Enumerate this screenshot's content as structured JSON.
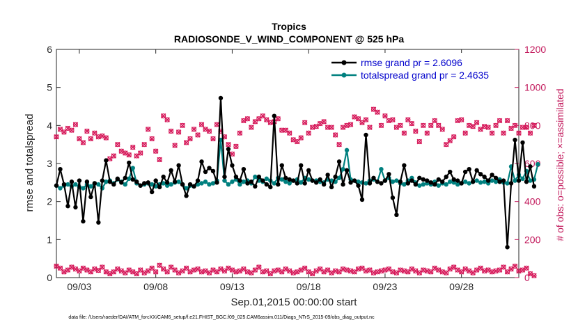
{
  "chart_data": {
    "type": "line",
    "title_line1": "Tropics",
    "title_line2": "RADIOSONDE_V_WIND_COMPONENT @ 525 hPa",
    "xlabel": "Sep.01,2015 00:00:00 start",
    "ylabel_left": "rmse and totalspread",
    "ylabel_right": "# of obs: o=possible; ×=assimilated",
    "x_ticks": [
      "09/03",
      "09/08",
      "09/13",
      "09/18",
      "09/23",
      "09/28"
    ],
    "x_tick_days": [
      3,
      8,
      13,
      18,
      23,
      28
    ],
    "xlim": [
      1.5,
      31.75
    ],
    "ylim_left": [
      0,
      6
    ],
    "y_ticks_left": [
      "0",
      "1",
      "2",
      "3",
      "4",
      "5",
      "6"
    ],
    "ylim_right": [
      0,
      1200
    ],
    "y_ticks_right": [
      "0",
      "200",
      "400",
      "600",
      "800",
      "1000",
      "1200"
    ],
    "legend": [
      "rmse grand pr = 2.6096",
      "totalspread grand pr = 2.4635"
    ],
    "colors": {
      "rmse": "#000000",
      "spread": "#00807f",
      "obs": "#d6195a",
      "axis_right": "#c2185b",
      "legend_text": "#0000cc"
    },
    "footnote": "data file: /Users/raeder/DAI/ATM_forcXX/CAM6_setup/f.e21.FHIST_BGC.f09_025.CAM6assim.011/Diags_NTrS_2015-09/obs_diag_output.nc",
    "series": [
      {
        "name": "rmse",
        "step_days": 0.25,
        "start_day": 1.5,
        "values": [
          2.42,
          2.85,
          2.45,
          1.88,
          2.52,
          1.85,
          2.55,
          1.48,
          2.52,
          2.12,
          2.48,
          1.45,
          2.55,
          3.08,
          2.52,
          2.45,
          2.6,
          2.5,
          2.62,
          3.02,
          2.58,
          2.52,
          2.42,
          2.48,
          2.5,
          2.25,
          2.55,
          2.38,
          2.65,
          2.5,
          2.82,
          2.52,
          2.95,
          2.45,
          2.15,
          2.45,
          2.4,
          2.55,
          3.05,
          2.78,
          2.88,
          2.8,
          2.5,
          4.72,
          2.65,
          3.38,
          2.95,
          2.65,
          2.55,
          2.85,
          2.48,
          2.52,
          2.4,
          2.65,
          2.55,
          2.45,
          2.38,
          4.25,
          2.45,
          2.95,
          2.62,
          2.58,
          2.55,
          2.48,
          2.95,
          2.48,
          2.82,
          2.55,
          2.5,
          2.58,
          2.45,
          2.7,
          2.38,
          2.65,
          3.05,
          2.45,
          2.82,
          2.5,
          2.55,
          2.42,
          2.05,
          3.75,
          2.48,
          2.62,
          2.52,
          2.48,
          2.55,
          2.72,
          2.1,
          1.65,
          2.52,
          2.95,
          2.48,
          2.55,
          2.45,
          2.62,
          2.58,
          2.55,
          2.5,
          2.45,
          2.58,
          2.52,
          2.65,
          2.78,
          2.58,
          2.55,
          2.48,
          2.78,
          2.85,
          2.52,
          2.82,
          2.72,
          2.65,
          2.55,
          2.7,
          2.62,
          2.52,
          2.55,
          0.8,
          2.48,
          3.62,
          2.55,
          3.55,
          2.52,
          2.92,
          2.4
        ]
      },
      {
        "name": "totalspread",
        "step_days": 0.25,
        "start_day": 1.5,
        "values": [
          2.42,
          2.35,
          2.42,
          2.45,
          2.4,
          2.45,
          2.38,
          2.35,
          2.45,
          2.4,
          2.48,
          2.45,
          2.35,
          2.52,
          2.55,
          2.48,
          2.58,
          2.52,
          2.45,
          2.6,
          2.88,
          2.48,
          2.42,
          2.45,
          2.48,
          2.45,
          2.4,
          2.45,
          2.48,
          2.42,
          2.45,
          2.5,
          2.52,
          2.45,
          2.35,
          2.42,
          2.4,
          2.45,
          2.48,
          2.52,
          2.45,
          2.48,
          2.55,
          3.62,
          2.55,
          2.45,
          2.52,
          2.58,
          2.45,
          2.52,
          2.55,
          2.48,
          2.65,
          2.55,
          2.52,
          2.6,
          2.55,
          2.48,
          2.62,
          2.58,
          2.52,
          2.48,
          2.55,
          2.58,
          2.5,
          2.62,
          2.58,
          2.55,
          2.55,
          2.52,
          2.5,
          2.58,
          2.55,
          2.52,
          2.62,
          2.85,
          3.35,
          2.58,
          2.55,
          2.52,
          2.5,
          2.48,
          2.55,
          2.58,
          2.52,
          2.85,
          2.55,
          2.62,
          2.52,
          2.55,
          2.48,
          2.45,
          2.55,
          2.62,
          2.5,
          2.42,
          2.45,
          2.48,
          2.45,
          2.52,
          2.42,
          2.48,
          2.45,
          2.52,
          2.5,
          2.45,
          2.48,
          2.52,
          2.48,
          2.52,
          2.55,
          2.5,
          2.52,
          2.48,
          2.55,
          2.52,
          2.58,
          2.5,
          2.48,
          2.92,
          2.55,
          2.7,
          2.6,
          2.8,
          2.55,
          2.58,
          2.98
        ]
      },
      {
        "name": "obs_possible",
        "step_days": 0.25,
        "start_day": 1.5,
        "values": [
          740,
          780,
          765,
          785,
          775,
          805,
          730,
          710,
          770,
          730,
          760,
          740,
          745,
          735,
          625,
          640,
          700,
          665,
          655,
          645,
          685,
          640,
          655,
          700,
          780,
          730,
          665,
          620,
          850,
          830,
          770,
          695,
          765,
          800,
          710,
          730,
          780,
          750,
          805,
          780,
          770,
          730,
          805,
          770,
          740,
          700,
          650,
          690,
          760,
          825,
          835,
          790,
          820,
          835,
          850,
          830,
          815,
          820,
          835,
          775,
          775,
          760,
          725,
          715,
          735,
          815,
          760,
          790,
          795,
          810,
          820,
          790,
          790,
          750,
          700,
          790,
          800,
          805,
          845,
          835,
          815,
          830,
          790,
          885,
          870,
          800,
          850,
          825,
          830,
          790,
          800,
          760,
          830,
          810,
          770,
          715,
          800,
          760,
          800,
          825,
          800,
          780,
          700,
          720,
          740,
          825,
          830,
          760,
          800,
          795,
          815,
          780,
          795,
          790,
          760,
          800,
          825,
          760,
          825,
          785,
          800,
          760,
          790,
          790,
          760,
          800
        ]
      },
      {
        "name": "obs_assimilated",
        "step_days": 0.25,
        "start_day": 1.5,
        "values": [
          60,
          50,
          30,
          40,
          55,
          45,
          35,
          50,
          40,
          30,
          45,
          38,
          55,
          30,
          20,
          30,
          45,
          35,
          25,
          40,
          30,
          20,
          40,
          25,
          35,
          50,
          30,
          65,
          45,
          30,
          55,
          40,
          25,
          35,
          50,
          30,
          40,
          45,
          30,
          35,
          25,
          40,
          30,
          45,
          35,
          50,
          40,
          30,
          35,
          45,
          30,
          25,
          40,
          55,
          30,
          35,
          20,
          35,
          40,
          30,
          45,
          35,
          25,
          30,
          40,
          50,
          30,
          20,
          35,
          45,
          30,
          40,
          25,
          35,
          30,
          45,
          40,
          35,
          30,
          45,
          50,
          35,
          40,
          25,
          30,
          35,
          40,
          45,
          30,
          25,
          40,
          35,
          30,
          45,
          35,
          25,
          40,
          35,
          30,
          50,
          40,
          30,
          25,
          45,
          55,
          40,
          30,
          45,
          35,
          25,
          40,
          50,
          35,
          40,
          30,
          35,
          40,
          55,
          30,
          45,
          60,
          35,
          40,
          50,
          20,
          10
        ]
      }
    ]
  }
}
